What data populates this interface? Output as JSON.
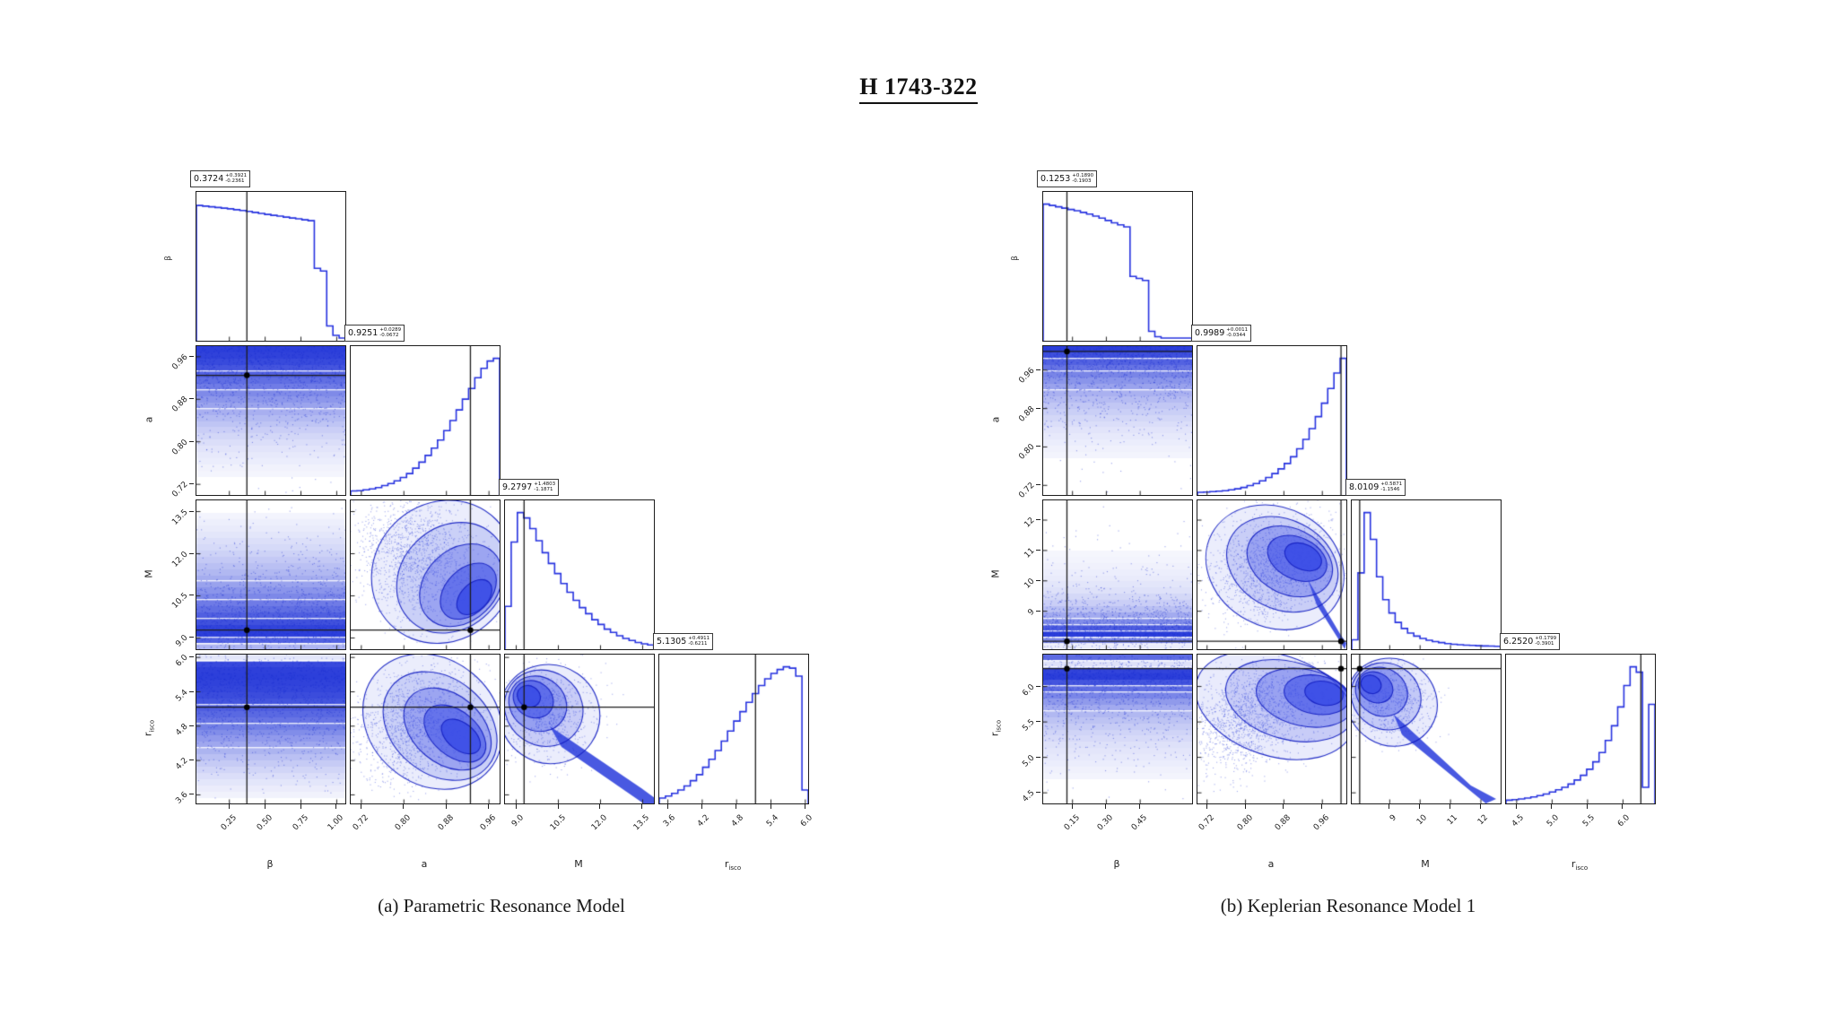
{
  "title": "H 1743-322",
  "colors": {
    "hist_line": "#2733e0",
    "scatter_blue": "#1c30d7",
    "contour_stroke": "#1622c4",
    "crosshair": "#1c1c1c",
    "background": "#ffffff"
  },
  "chart_data": [
    {
      "id": "a",
      "type": "corner",
      "caption": "(a) Parametric Resonance Model",
      "params": [
        {
          "label": "β",
          "label_sub": "",
          "range": [
            0.02,
            1.06
          ],
          "ticks": [
            0.25,
            0.5,
            0.75,
            1.0
          ],
          "tick_labels": [
            "0.25",
            "0.50",
            "0.75",
            "1.00"
          ],
          "estimate": 0.3724,
          "estimate_label": {
            "main": "0.3724",
            "plus": "+0.3921",
            "minus": "-0.2361"
          },
          "hist": [
            0.99,
            0.985,
            0.98,
            0.975,
            0.97,
            0.965,
            0.958,
            0.952,
            0.945,
            0.938,
            0.93,
            0.923,
            0.916,
            0.91,
            0.903,
            0.896,
            0.89,
            0.883,
            0.876,
            0.52,
            0.5,
            0.09,
            0.02,
            0.0
          ]
        },
        {
          "label": "a",
          "label_sub": "",
          "range": [
            0.7,
            0.98
          ],
          "ticks": [
            0.72,
            0.8,
            0.88,
            0.96
          ],
          "tick_labels": [
            "0.72",
            "0.80",
            "0.88",
            "0.96"
          ],
          "estimate": 0.9251,
          "estimate_label": {
            "main": "0.9251",
            "plus": "+0.0289",
            "minus": "-0.0672"
          },
          "hist": [
            0.01,
            0.012,
            0.018,
            0.025,
            0.035,
            0.05,
            0.065,
            0.085,
            0.11,
            0.14,
            0.18,
            0.225,
            0.275,
            0.33,
            0.39,
            0.46,
            0.535,
            0.615,
            0.695,
            0.775,
            0.855,
            0.925,
            0.98,
            1.0
          ]
        },
        {
          "label": "M",
          "label_sub": "",
          "range": [
            8.6,
            13.9
          ],
          "ticks": [
            9.0,
            10.5,
            12.0,
            13.5
          ],
          "tick_labels": [
            "9.0",
            "10.5",
            "12.0",
            "13.5"
          ],
          "estimate": 9.2797,
          "estimate_label": {
            "main": "9.2797",
            "plus": "+1.4803",
            "minus": "-1.1871"
          },
          "hist": [
            0.3,
            0.78,
            1.0,
            0.96,
            0.88,
            0.79,
            0.7,
            0.62,
            0.545,
            0.47,
            0.405,
            0.345,
            0.29,
            0.245,
            0.2,
            0.165,
            0.13,
            0.105,
            0.08,
            0.06,
            0.045,
            0.03,
            0.02,
            0.012
          ]
        },
        {
          "label": "r",
          "label_sub": "isco",
          "range": [
            3.45,
            6.05
          ],
          "ticks": [
            3.6,
            4.2,
            4.8,
            5.4,
            6.0
          ],
          "tick_labels": [
            "3.6",
            "4.2",
            "4.8",
            "5.4",
            "6.0"
          ],
          "estimate": 5.1305,
          "estimate_label": {
            "main": "5.1305",
            "plus": "+0.4911",
            "minus": "-0.6211"
          },
          "hist": [
            0.02,
            0.035,
            0.055,
            0.08,
            0.11,
            0.15,
            0.195,
            0.25,
            0.31,
            0.375,
            0.445,
            0.52,
            0.595,
            0.665,
            0.735,
            0.8,
            0.86,
            0.91,
            0.95,
            0.98,
            1.0,
            0.99,
            0.93,
            0.08
          ]
        }
      ],
      "pairs": {
        "1,0": {
          "style": "band",
          "density": 1
        },
        "2,0": {
          "style": "band",
          "density": 2
        },
        "3,0": {
          "style": "band",
          "density": 3
        },
        "2,1": {
          "style": "blob",
          "layers": [
            [
              0.62,
              0.52,
              0.5,
              0.46,
              45,
              0.1
            ],
            [
              0.68,
              0.48,
              0.4,
              0.34,
              45,
              0.18
            ],
            [
              0.74,
              0.43,
              0.31,
              0.24,
              45,
              0.32
            ],
            [
              0.79,
              0.39,
              0.22,
              0.15,
              45,
              0.55
            ],
            [
              0.83,
              0.35,
              0.14,
              0.09,
              45,
              0.85
            ]
          ],
          "spray": [
            [
              0.45,
              0.62,
              0.42,
              0.36,
              45,
              1500
            ]
          ]
        },
        "3,1": {
          "style": "blob",
          "layers": [
            [
              0.55,
              0.55,
              0.5,
              0.42,
              -40,
              0.1
            ],
            [
              0.6,
              0.52,
              0.42,
              0.32,
              -40,
              0.18
            ],
            [
              0.65,
              0.5,
              0.33,
              0.23,
              -40,
              0.32
            ],
            [
              0.7,
              0.47,
              0.24,
              0.15,
              -40,
              0.55
            ],
            [
              0.74,
              0.45,
              0.15,
              0.09,
              -38,
              0.85
            ]
          ],
          "spray": [
            [
              0.42,
              0.52,
              0.42,
              0.32,
              -35,
              1400
            ]
          ]
        },
        "3,2": {
          "style": "blob",
          "layers": [
            [
              0.3,
              0.6,
              0.34,
              0.33,
              -35,
              0.1
            ],
            [
              0.26,
              0.64,
              0.27,
              0.25,
              -35,
              0.2
            ],
            [
              0.22,
              0.67,
              0.2,
              0.18,
              -33,
              0.35
            ],
            [
              0.19,
              0.7,
              0.14,
              0.12,
              -31,
              0.6
            ],
            [
              0.16,
              0.72,
              0.08,
              0.07,
              -30,
              0.9
            ]
          ],
          "tail": [
            [
              0.3,
              0.52
            ],
            [
              0.92,
              0.1
            ],
            [
              1.0,
              0.04
            ],
            [
              1.0,
              0.0
            ],
            [
              0.93,
              0.0
            ],
            [
              0.38,
              0.38
            ]
          ],
          "spray": [
            [
              0.3,
              0.6,
              0.3,
              0.28,
              -33,
              700
            ]
          ]
        }
      }
    },
    {
      "id": "b",
      "type": "corner",
      "caption": "(b) Keplerian Resonance Model 1",
      "params": [
        {
          "label": "β",
          "label_sub": "",
          "range": [
            0.02,
            0.68
          ],
          "ticks": [
            0.15,
            0.3,
            0.45
          ],
          "tick_labels": [
            "0.15",
            "0.30",
            "0.45"
          ],
          "estimate": 0.1253,
          "estimate_label": {
            "main": "0.1253",
            "plus": "+0.1890",
            "minus": "-0.1903"
          },
          "hist": [
            1.0,
            0.99,
            0.98,
            0.97,
            0.96,
            0.95,
            0.938,
            0.925,
            0.91,
            0.895,
            0.878,
            0.86,
            0.845,
            0.83,
            0.46,
            0.445,
            0.43,
            0.05,
            0.01,
            0.0,
            0.0,
            0.0,
            0.0,
            0.0
          ]
        },
        {
          "label": "a",
          "label_sub": "",
          "range": [
            0.7,
            1.01
          ],
          "ticks": [
            0.72,
            0.8,
            0.88,
            0.96
          ],
          "tick_labels": [
            "0.72",
            "0.80",
            "0.88",
            "0.96"
          ],
          "estimate": 0.9989,
          "estimate_label": {
            "main": "0.9989",
            "plus": "+0.0011",
            "minus": "-0.0344"
          },
          "hist": [
            0.0,
            0.002,
            0.005,
            0.008,
            0.012,
            0.018,
            0.026,
            0.036,
            0.05,
            0.065,
            0.085,
            0.11,
            0.14,
            0.175,
            0.215,
            0.265,
            0.325,
            0.395,
            0.475,
            0.565,
            0.665,
            0.775,
            0.89,
            1.0
          ]
        },
        {
          "label": "M",
          "label_sub": "",
          "range": [
            7.75,
            12.65
          ],
          "ticks": [
            9,
            10,
            11,
            12
          ],
          "tick_labels": [
            "9",
            "10",
            "11",
            "12"
          ],
          "estimate": 8.0109,
          "estimate_label": {
            "main": "8.0109",
            "plus": "+0.5871",
            "minus": "-1.1546"
          },
          "hist": [
            0.05,
            0.55,
            1.0,
            0.8,
            0.52,
            0.35,
            0.25,
            0.18,
            0.135,
            0.1,
            0.078,
            0.06,
            0.047,
            0.037,
            0.029,
            0.022,
            0.017,
            0.013,
            0.01,
            0.008,
            0.006,
            0.004,
            0.003,
            0.002
          ]
        },
        {
          "label": "r",
          "label_sub": "isco",
          "range": [
            4.35,
            6.45
          ],
          "ticks": [
            4.5,
            5.0,
            5.5,
            6.0
          ],
          "tick_labels": [
            "4.5",
            "5.0",
            "5.5",
            "6.0"
          ],
          "estimate": 6.252,
          "estimate_label": {
            "main": "6.2520",
            "plus": "+0.1799",
            "minus": "-0.3901"
          },
          "hist": [
            0.004,
            0.008,
            0.013,
            0.02,
            0.028,
            0.038,
            0.05,
            0.065,
            0.082,
            0.1,
            0.125,
            0.155,
            0.19,
            0.235,
            0.29,
            0.36,
            0.45,
            0.56,
            0.7,
            0.86,
            1.0,
            0.96,
            0.1,
            0.72
          ]
        }
      ],
      "pairs": {
        "1,0": {
          "style": "band",
          "density": 1
        },
        "2,0": {
          "style": "band",
          "density": 2
        },
        "3,0": {
          "style": "band",
          "density": 3
        },
        "2,1": {
          "style": "blob",
          "layers": [
            [
              0.52,
              0.55,
              0.48,
              0.4,
              -28,
              0.1
            ],
            [
              0.57,
              0.57,
              0.39,
              0.3,
              -27,
              0.19
            ],
            [
              0.62,
              0.59,
              0.3,
              0.22,
              -26,
              0.33
            ],
            [
              0.67,
              0.61,
              0.21,
              0.14,
              -25,
              0.57
            ],
            [
              0.71,
              0.62,
              0.13,
              0.085,
              -25,
              0.87
            ]
          ],
          "tail": [
            [
              0.74,
              0.47
            ],
            [
              0.96,
              0.1
            ],
            [
              1.0,
              0.04
            ],
            [
              0.99,
              0.0
            ],
            [
              0.8,
              0.3
            ]
          ],
          "spray": [
            [
              0.48,
              0.55,
              0.42,
              0.32,
              -26,
              1300
            ]
          ]
        },
        "3,1": {
          "style": "blob",
          "layers": [
            [
              0.52,
              0.66,
              0.55,
              0.34,
              -18,
              0.11
            ],
            [
              0.62,
              0.69,
              0.44,
              0.26,
              -15,
              0.19
            ],
            [
              0.72,
              0.71,
              0.33,
              0.19,
              -12,
              0.33
            ],
            [
              0.8,
              0.73,
              0.22,
              0.13,
              -10,
              0.57
            ],
            [
              0.85,
              0.74,
              0.13,
              0.08,
              -10,
              0.87
            ]
          ],
          "spray": [
            [
              0.35,
              0.6,
              0.46,
              0.3,
              -28,
              1700
            ]
          ]
        },
        "3,2": {
          "style": "blob",
          "layers": [
            [
              0.27,
              0.68,
              0.31,
              0.29,
              -32,
              0.11
            ],
            [
              0.23,
              0.72,
              0.24,
              0.22,
              -32,
              0.21
            ],
            [
              0.2,
              0.75,
              0.18,
              0.16,
              -30,
              0.37
            ],
            [
              0.16,
              0.78,
              0.12,
              0.1,
              -28,
              0.63
            ],
            [
              0.13,
              0.8,
              0.07,
              0.06,
              -27,
              0.9
            ]
          ],
          "tail": [
            [
              0.28,
              0.6
            ],
            [
              0.8,
              0.12
            ],
            [
              0.97,
              0.03
            ],
            [
              0.9,
              0.0
            ],
            [
              0.34,
              0.46
            ]
          ],
          "spray": [
            [
              0.27,
              0.68,
              0.26,
              0.24,
              -30,
              600
            ]
          ]
        }
      }
    }
  ]
}
